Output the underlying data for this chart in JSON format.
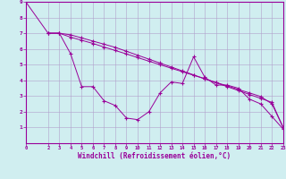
{
  "xlabel": "Windchill (Refroidissement éolien,°C)",
  "bg_color": "#d0eef0",
  "line_color": "#990099",
  "grid_color": "#b0a0cc",
  "xlim": [
    0,
    23
  ],
  "ylim": [
    0,
    9
  ],
  "xticks": [
    0,
    2,
    3,
    4,
    5,
    6,
    7,
    8,
    9,
    10,
    11,
    12,
    13,
    14,
    15,
    16,
    17,
    18,
    19,
    20,
    21,
    22,
    23
  ],
  "yticks": [
    1,
    2,
    3,
    4,
    5,
    6,
    7,
    8,
    9
  ],
  "line1_x": [
    0,
    2,
    3,
    4,
    5,
    6,
    7,
    8,
    9,
    10,
    11,
    12,
    13,
    14,
    15,
    16,
    17,
    18,
    19,
    20,
    21,
    22,
    23
  ],
  "line1_y": [
    9,
    7.0,
    7.0,
    5.7,
    3.6,
    3.6,
    2.7,
    2.4,
    1.6,
    1.5,
    2.0,
    3.2,
    3.9,
    3.8,
    5.5,
    4.2,
    3.7,
    3.7,
    3.5,
    2.8,
    2.5,
    1.7,
    0.9
  ],
  "line2_x": [
    2,
    3,
    4,
    5,
    6,
    7,
    8,
    9,
    10,
    11,
    12,
    13,
    14,
    15,
    16,
    17,
    18,
    19,
    20,
    21,
    22,
    23
  ],
  "line2_y": [
    7.0,
    7.0,
    6.75,
    6.55,
    6.35,
    6.12,
    5.9,
    5.68,
    5.45,
    5.22,
    5.0,
    4.77,
    4.55,
    4.32,
    4.1,
    3.87,
    3.65,
    3.42,
    3.2,
    2.97,
    2.5,
    1.0
  ],
  "line3_x": [
    2,
    3,
    4,
    5,
    6,
    7,
    8,
    9,
    10,
    11,
    12,
    13,
    14,
    15,
    16,
    17,
    18,
    19,
    20,
    21,
    22,
    23
  ],
  "line3_y": [
    7.0,
    7.0,
    6.9,
    6.7,
    6.5,
    6.3,
    6.1,
    5.85,
    5.6,
    5.35,
    5.1,
    4.85,
    4.6,
    4.35,
    4.1,
    3.85,
    3.6,
    3.35,
    3.1,
    2.85,
    2.6,
    1.0
  ]
}
